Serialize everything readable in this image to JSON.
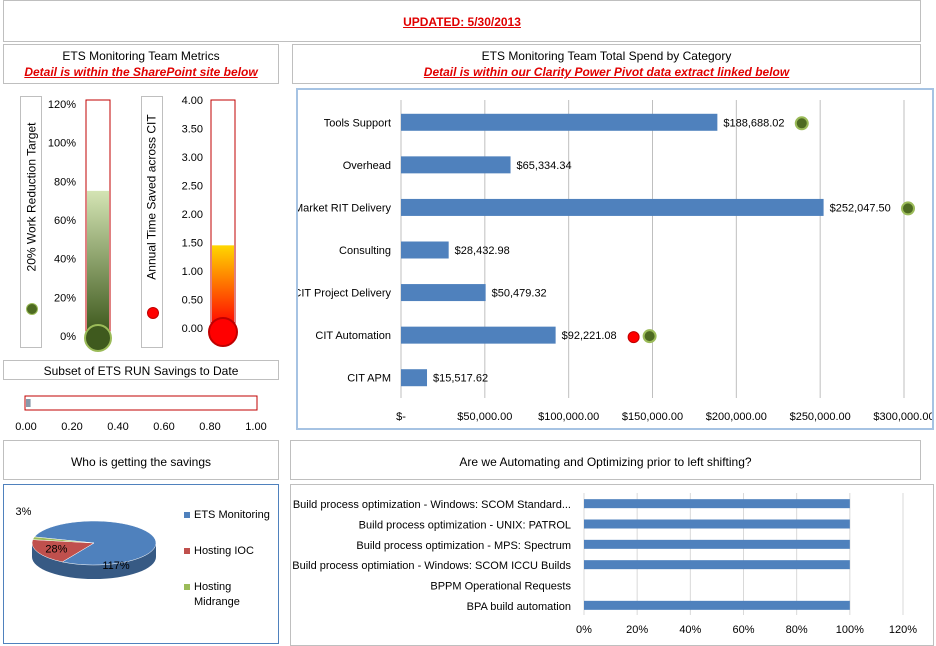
{
  "header": {
    "updated": "UPDATED:  5/30/2013"
  },
  "metrics_panel": {
    "title": "ETS Monitoring Team Metrics",
    "subtitle": "Detail is within the SharePoint site below"
  },
  "spend_panel": {
    "title": "ETS Monitoring Team Total Spend by Category",
    "subtitle": "Detail is within our Clarity Power Pivot data extract linked below"
  },
  "savings_panel": {
    "title": "Subset of ETS RUN Savings to Date"
  },
  "who_panel": {
    "title": "Who is getting the savings"
  },
  "auto_panel": {
    "title": "Are we Automating and Optimizing prior to left shifting?"
  },
  "chart_data": [
    {
      "id": "work-reduction-thermometer",
      "type": "bar",
      "ylabel": "20% Work Reduction Target",
      "ticks": [
        "120%",
        "100%",
        "80%",
        "60%",
        "40%",
        "20%",
        "0%"
      ],
      "ylim": [
        0,
        1.2
      ],
      "value": 0.73,
      "colors": {
        "fill": "#4e6b22",
        "bulb": "#3f5a1e",
        "border": "#c00000"
      }
    },
    {
      "id": "annual-time-saved-thermometer",
      "type": "bar",
      "ylabel": "Annual Time Saved across CIT",
      "ticks": [
        "4.00",
        "3.50",
        "3.00",
        "2.50",
        "2.00",
        "1.50",
        "1.00",
        "0.50",
        "0.00"
      ],
      "ylim": [
        0,
        4
      ],
      "value": 1.45,
      "colors": {
        "fill_top": "#ffd700",
        "fill_bottom": "#ff0000",
        "bulb": "#ff0000",
        "border": "#c00000"
      }
    },
    {
      "id": "run-savings-bar",
      "type": "bar",
      "ticks": [
        "0.00",
        "0.20",
        "0.40",
        "0.60",
        "0.80",
        "1.00"
      ],
      "xlim": [
        0,
        1
      ],
      "value": 0.02
    },
    {
      "id": "spend-by-category",
      "type": "bar",
      "orientation": "horizontal",
      "categories": [
        "Tools Support",
        "Overhead",
        "Market RIT Delivery",
        "Consulting",
        "CIT Project Delivery",
        "CIT Automation",
        "CIT APM"
      ],
      "values": [
        188688.02,
        65334.34,
        252047.5,
        28432.98,
        50479.32,
        92221.08,
        15517.62
      ],
      "value_labels": [
        "$188,688.02",
        "$65,334.34",
        "$252,047.50",
        "$28,432.98",
        "$50,479.32",
        "$92,221.08",
        "$15,517.62"
      ],
      "green_dots": [
        "Tools Support",
        "Market RIT Delivery",
        "CIT Automation"
      ],
      "red_dots": [
        "CIT Automation"
      ],
      "xticks": [
        "$-",
        "$50,000.00",
        "$100,000.00",
        "$150,000.00",
        "$200,000.00",
        "$250,000.00",
        "$300,000.00"
      ],
      "xlim": [
        0,
        300000
      ],
      "grid": true,
      "colors": {
        "bar": "#4f81bd",
        "green_dot": "#4e6b22",
        "red_dot": "#ff0000"
      }
    },
    {
      "id": "who-pie",
      "type": "pie",
      "slices": [
        {
          "name": "ETS Monitoring",
          "label": "117%",
          "value": 117,
          "color": "#4f81bd"
        },
        {
          "name": "Hosting IOC",
          "label": "28%",
          "value": 28,
          "color": "#c0504d"
        },
        {
          "name": "Hosting Midrange",
          "label": "3%",
          "value": 3,
          "color": "#9bbb59"
        }
      ],
      "legend": "right"
    },
    {
      "id": "automation-bars",
      "type": "bar",
      "orientation": "horizontal",
      "categories": [
        "Build process optimization - Windows: SCOM Standard...",
        "Build process optimization - UNIX: PATROL",
        "Build process optimization - MPS:  Spectrum",
        "Build process optimiation - Windows: SCOM ICCU Builds",
        "BPPM Operational Requests",
        "BPA build automation"
      ],
      "values": [
        1.0,
        1.0,
        1.0,
        1.0,
        0,
        1.0
      ],
      "xticks": [
        "0%",
        "20%",
        "40%",
        "60%",
        "80%",
        "100%",
        "120%"
      ],
      "xlim": [
        0,
        1.2
      ],
      "colors": {
        "bar": "#4f81bd"
      }
    }
  ]
}
